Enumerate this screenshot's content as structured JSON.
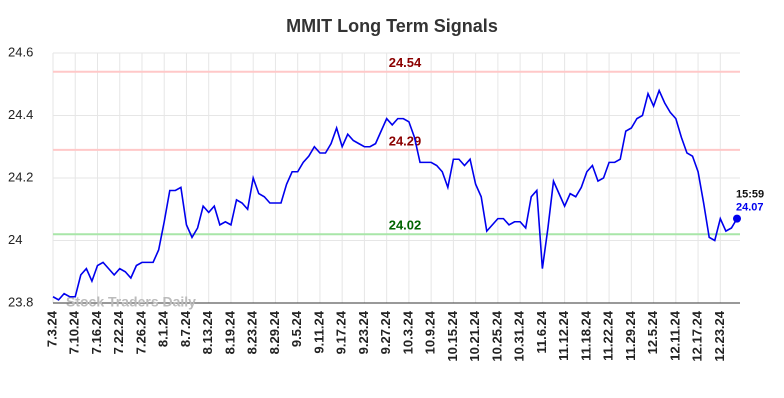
{
  "chart_data": {
    "type": "line",
    "title": "MMIT Long Term Signals",
    "watermark": "Stock Traders Daily",
    "categories": [
      "7.3.24",
      null,
      null,
      null,
      "7.10.24",
      null,
      null,
      null,
      "7.16.24",
      null,
      null,
      null,
      "7.22.24",
      null,
      null,
      null,
      "7.26.24",
      null,
      null,
      null,
      "8.1.24",
      null,
      null,
      null,
      "8.7.24",
      null,
      null,
      null,
      "8.13.24",
      null,
      null,
      null,
      "8.19.24",
      null,
      null,
      null,
      "8.23.24",
      null,
      null,
      null,
      "8.29.24",
      null,
      null,
      null,
      "9.5.24",
      null,
      null,
      null,
      "9.11.24",
      null,
      null,
      null,
      "9.17.24",
      null,
      null,
      null,
      "9.23.24",
      null,
      null,
      null,
      "9.27.24",
      null,
      null,
      null,
      "10.3.24",
      null,
      null,
      null,
      "10.9.24",
      null,
      null,
      null,
      "10.15.24",
      null,
      null,
      null,
      "10.21.24",
      null,
      null,
      null,
      "10.25.24",
      null,
      null,
      null,
      "10.31.24",
      null,
      null,
      null,
      "11.6.24",
      null,
      null,
      null,
      "11.12.24",
      null,
      null,
      null,
      "11.18.24",
      null,
      null,
      null,
      "11.22.24",
      null,
      null,
      null,
      "11.29.24",
      null,
      null,
      null,
      "12.5.24",
      null,
      null,
      null,
      "12.11.24",
      null,
      null,
      null,
      "12.17.24",
      null,
      null,
      null,
      "12.23.24",
      null,
      null,
      null
    ],
    "series": [
      {
        "color": "#0000ee",
        "values": [
          23.82,
          23.81,
          23.83,
          23.82,
          23.82,
          23.89,
          23.91,
          23.87,
          23.92,
          23.93,
          23.91,
          23.89,
          23.91,
          23.9,
          23.88,
          23.92,
          23.93,
          23.93,
          23.93,
          23.97,
          24.06,
          24.16,
          24.16,
          24.17,
          24.05,
          24.01,
          24.04,
          24.11,
          24.09,
          24.11,
          24.05,
          24.06,
          24.05,
          24.13,
          24.12,
          24.1,
          24.2,
          24.15,
          24.14,
          24.12,
          24.12,
          24.12,
          24.18,
          24.22,
          24.22,
          24.25,
          24.27,
          24.3,
          24.28,
          24.28,
          24.31,
          24.36,
          24.3,
          24.34,
          24.32,
          24.31,
          24.3,
          24.3,
          24.31,
          24.35,
          24.39,
          24.37,
          24.39,
          24.39,
          24.38,
          24.33,
          24.25,
          24.25,
          24.25,
          24.24,
          24.22,
          24.17,
          24.26,
          24.26,
          24.24,
          24.26,
          24.18,
          24.14,
          24.03,
          24.05,
          24.07,
          24.07,
          24.05,
          24.06,
          24.06,
          24.04,
          24.14,
          24.16,
          23.91,
          24.04,
          24.19,
          24.15,
          24.11,
          24.15,
          24.14,
          24.17,
          24.22,
          24.24,
          24.19,
          24.2,
          24.25,
          24.25,
          24.26,
          24.35,
          24.36,
          24.39,
          24.4,
          24.47,
          24.43,
          24.48,
          24.44,
          24.41,
          24.39,
          24.33,
          24.28,
          24.27,
          24.22,
          24.12,
          24.01,
          24.0,
          24.07,
          24.03,
          24.04,
          24.07
        ]
      }
    ],
    "last_point_time": "15:59",
    "levels": [
      {
        "value": 24.54,
        "color": "#ffc8c8",
        "label_color": "#8b0000"
      },
      {
        "value": 24.29,
        "color": "#ffc8c8",
        "label_color": "#8b0000"
      },
      {
        "value": 24.02,
        "color": "#a8e6a8",
        "label_color": "#006400"
      }
    ],
    "ylim": [
      23.8,
      24.6
    ],
    "yticks": [
      23.8,
      24,
      24.2,
      24.4,
      24.6
    ],
    "grid": true
  }
}
